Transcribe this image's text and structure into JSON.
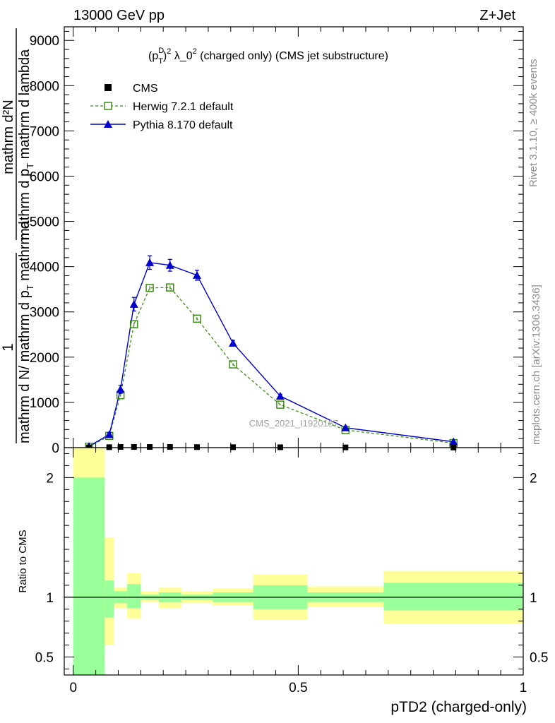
{
  "header": {
    "beam": "13000 GeV pp",
    "process": "Z+Jet"
  },
  "side_labels": {
    "rivet": "Rivet 3.1.10, ≥ 400k events",
    "mcplots": "mcplots.cern.ch [arXiv:1306.3436]"
  },
  "watermark": "CMS_2021_I1920187",
  "chart_data": [
    {
      "type": "line",
      "title_parts": {
        "p": "(p",
        "sup_d": "D",
        "sub_t": "T",
        "close": ")",
        "sup_2": "2",
        "lambda": " λ_0",
        "sup_2b": "2",
        "rest": " (charged only) (CMS jet substructure)"
      },
      "ylabel_parts": {
        "numerator_one": "1",
        "denominator_one": "mathrm d N",
        "ratio_slash": "/ mathrm d p",
        "sub_t": "T",
        "ratio_rest": " mathrm d ",
        "numerator_two": "mathrm d²N",
        "denominator_two": "mathrm d p",
        "sub_t2": "T",
        "den_two_rest": " mathrm d lambda"
      },
      "ylim": [
        0,
        9300
      ],
      "xlim": [
        -0.02,
        1.0
      ],
      "yticks": [
        {
          "v": 0,
          "label": "0"
        },
        {
          "v": 1000,
          "label": "1000"
        },
        {
          "v": 2000,
          "label": "2000"
        },
        {
          "v": 3000,
          "label": "3000"
        },
        {
          "v": 4000,
          "label": "4000"
        },
        {
          "v": 5000,
          "label": "5000"
        },
        {
          "v": 6000,
          "label": "6000"
        },
        {
          "v": 7000,
          "label": "7000"
        },
        {
          "v": 8000,
          "label": "8000"
        },
        {
          "v": 9000,
          "label": "9000"
        }
      ],
      "legend": [
        {
          "name": "CMS",
          "marker": "square-filled",
          "color": "#000000"
        },
        {
          "name": "Herwig 7.2.1 default",
          "marker": "square-open",
          "color": "#3a8f14"
        },
        {
          "name": "Pythia 8.170 default",
          "marker": "triangle",
          "color": "#0000cc"
        }
      ],
      "series": [
        {
          "name": "CMS",
          "x": [
            0.035,
            0.08,
            0.105,
            0.135,
            0.17,
            0.215,
            0.275,
            0.355,
            0.46,
            0.605,
            0.845
          ],
          "y": [
            5,
            10,
            15,
            15,
            15,
            15,
            12,
            10,
            8,
            5,
            3
          ]
        },
        {
          "name": "Herwig 7.2.1 default",
          "x": [
            0.035,
            0.08,
            0.105,
            0.135,
            0.17,
            0.215,
            0.275,
            0.355,
            0.46,
            0.605,
            0.845
          ],
          "y": [
            20,
            260,
            1160,
            2730,
            3530,
            3540,
            2850,
            1840,
            950,
            390,
            100
          ],
          "err": [
            0,
            20,
            30,
            30,
            40,
            40,
            30,
            30,
            20,
            10,
            10
          ]
        },
        {
          "name": "Pythia 8.170 default",
          "x": [
            0.035,
            0.08,
            0.105,
            0.135,
            0.17,
            0.215,
            0.275,
            0.355,
            0.46,
            0.605,
            0.845
          ],
          "y": [
            30,
            290,
            1290,
            3170,
            4090,
            4030,
            3810,
            2310,
            1140,
            440,
            130
          ],
          "err": [
            0,
            40,
            90,
            150,
            150,
            130,
            110,
            60,
            40,
            20,
            10
          ]
        }
      ]
    },
    {
      "type": "area",
      "ylabel": "Ratio to CMS",
      "xlabel": "pTD2 (charged-only)",
      "ylim": [
        0.35,
        2.25
      ],
      "xlim": [
        -0.02,
        1.0
      ],
      "yticks": [
        {
          "v": 0.5,
          "label": "0.5"
        },
        {
          "v": 1,
          "label": "1"
        },
        {
          "v": 2,
          "label": "2"
        }
      ],
      "xticks": [
        {
          "v": 0,
          "label": "0"
        },
        {
          "v": 0.5,
          "label": "0.5"
        },
        {
          "v": 1,
          "label": "1"
        }
      ],
      "bins": [
        {
          "lo": 0.0,
          "hi": 0.07,
          "green": [
            0.2,
            2.0
          ],
          "yellow": [
            0.2,
            2.4
          ]
        },
        {
          "lo": 0.07,
          "hi": 0.09,
          "green": [
            0.83,
            1.14
          ],
          "yellow": [
            0.6,
            1.5
          ]
        },
        {
          "lo": 0.09,
          "hi": 0.12,
          "green": [
            0.95,
            1.05
          ],
          "yellow": [
            0.91,
            1.08
          ]
        },
        {
          "lo": 0.12,
          "hi": 0.15,
          "green": [
            0.91,
            1.11
          ],
          "yellow": [
            0.82,
            1.2
          ]
        },
        {
          "lo": 0.15,
          "hi": 0.19,
          "green": [
            0.98,
            1.02
          ],
          "yellow": [
            0.96,
            1.05
          ]
        },
        {
          "lo": 0.19,
          "hi": 0.24,
          "green": [
            0.96,
            1.04
          ],
          "yellow": [
            0.91,
            1.08
          ]
        },
        {
          "lo": 0.24,
          "hi": 0.31,
          "green": [
            0.98,
            1.02
          ],
          "yellow": [
            0.95,
            1.05
          ]
        },
        {
          "lo": 0.31,
          "hi": 0.4,
          "green": [
            0.96,
            1.04
          ],
          "yellow": [
            0.93,
            1.07
          ]
        },
        {
          "lo": 0.4,
          "hi": 0.52,
          "green": [
            0.9,
            1.1
          ],
          "yellow": [
            0.81,
            1.19
          ]
        },
        {
          "lo": 0.52,
          "hi": 0.69,
          "green": [
            0.96,
            1.04
          ],
          "yellow": [
            0.92,
            1.09
          ]
        },
        {
          "lo": 0.69,
          "hi": 1.0,
          "green": [
            0.89,
            1.12
          ],
          "yellow": [
            0.78,
            1.22
          ]
        }
      ],
      "colors": {
        "green": "#99ff99",
        "yellow": "#ffff99"
      }
    }
  ]
}
